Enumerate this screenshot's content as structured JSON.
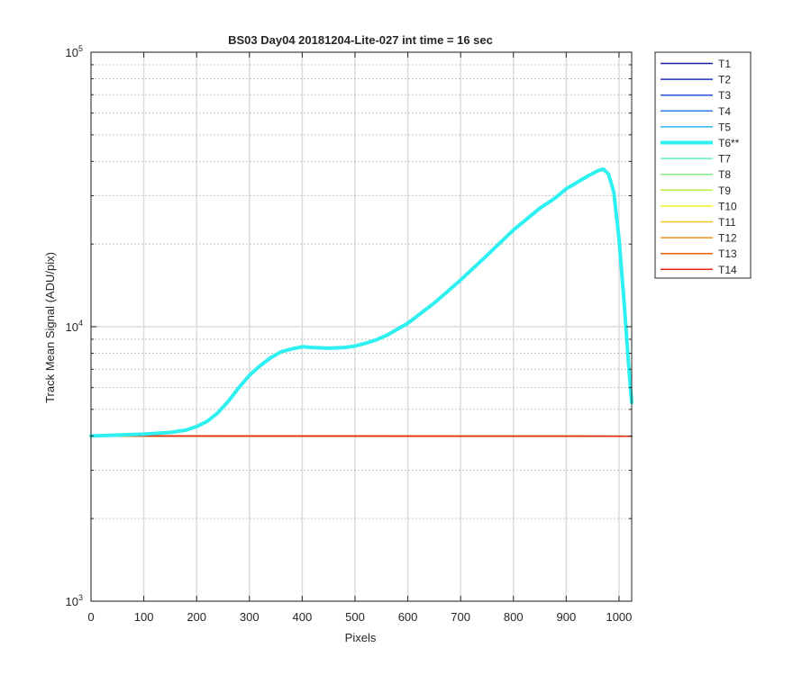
{
  "chart_data": {
    "type": "line",
    "title": "BS03 Day04 20181204-Lite-027 int time = 16 sec",
    "xlabel": "Pixels",
    "ylabel": "Track Mean Signal (ADU/pix)",
    "xlim": [
      0,
      1024
    ],
    "ylim": [
      1000,
      100000
    ],
    "yscale": "log",
    "grid": true,
    "legend_position": "outside-top-right",
    "x_ticks": [
      0,
      100,
      200,
      300,
      400,
      500,
      600,
      700,
      800,
      900,
      1000
    ],
    "y_ticks": [
      {
        "value": 1000,
        "base": "10",
        "exp": "3"
      },
      {
        "value": 10000,
        "base": "10",
        "exp": "4"
      },
      {
        "value": 100000,
        "base": "10",
        "exp": "5"
      }
    ],
    "series": [
      {
        "name": "T1",
        "color": "#1a1a99",
        "width": 1.5,
        "x": [
          0,
          1024
        ],
        "y": [
          4000,
          3990
        ]
      },
      {
        "name": "T2",
        "color": "#1f2fcc",
        "width": 1.5,
        "x": [
          0,
          1024
        ],
        "y": [
          4000,
          3990
        ]
      },
      {
        "name": "T3",
        "color": "#2255e0",
        "width": 1.5,
        "x": [
          0,
          1024
        ],
        "y": [
          4000,
          3990
        ]
      },
      {
        "name": "T4",
        "color": "#2a7de6",
        "width": 1.5,
        "x": [
          0,
          1024
        ],
        "y": [
          4000,
          3990
        ]
      },
      {
        "name": "T5",
        "color": "#2fb4ea",
        "width": 1.5,
        "x": [
          0,
          1024
        ],
        "y": [
          4000,
          3990
        ]
      },
      {
        "name": "T6**",
        "color": "#2ff0f0",
        "width": 4,
        "x": [
          0,
          50,
          100,
          150,
          180,
          200,
          220,
          240,
          260,
          280,
          300,
          320,
          340,
          360,
          380,
          400,
          420,
          450,
          480,
          500,
          520,
          540,
          560,
          600,
          650,
          700,
          750,
          800,
          850,
          880,
          900,
          920,
          940,
          960,
          970,
          980,
          990,
          1000,
          1010,
          1020,
          1024
        ],
        "y": [
          4000,
          4030,
          4060,
          4120,
          4200,
          4330,
          4520,
          4850,
          5350,
          6000,
          6650,
          7200,
          7700,
          8100,
          8300,
          8450,
          8400,
          8350,
          8400,
          8500,
          8700,
          8950,
          9300,
          10300,
          12200,
          14800,
          18200,
          22500,
          27000,
          29500,
          31800,
          33500,
          35300,
          37000,
          37500,
          36000,
          31000,
          21000,
          12000,
          6500,
          5300
        ]
      },
      {
        "name": "T7",
        "color": "#5fefc0",
        "width": 1.5,
        "x": [
          0,
          1024
        ],
        "y": [
          4000,
          3990
        ]
      },
      {
        "name": "T8",
        "color": "#82f080",
        "width": 1.5,
        "x": [
          0,
          1024
        ],
        "y": [
          4000,
          3990
        ]
      },
      {
        "name": "T9",
        "color": "#b6ef3f",
        "width": 1.5,
        "x": [
          0,
          1024
        ],
        "y": [
          4000,
          3990
        ]
      },
      {
        "name": "T10",
        "color": "#f0f020",
        "width": 1.5,
        "x": [
          0,
          1024
        ],
        "y": [
          4000,
          3990
        ]
      },
      {
        "name": "T11",
        "color": "#f3c623",
        "width": 1.5,
        "x": [
          0,
          1024
        ],
        "y": [
          4000,
          3990
        ]
      },
      {
        "name": "T12",
        "color": "#f28e1c",
        "width": 1.5,
        "x": [
          0,
          1024
        ],
        "y": [
          4000,
          3990
        ]
      },
      {
        "name": "T13",
        "color": "#f25a14",
        "width": 1.5,
        "x": [
          0,
          1024
        ],
        "y": [
          4000,
          3990
        ]
      },
      {
        "name": "T14",
        "color": "#e8240e",
        "width": 1.5,
        "x": [
          0,
          1024
        ],
        "y": [
          4000,
          3990
        ]
      }
    ]
  }
}
